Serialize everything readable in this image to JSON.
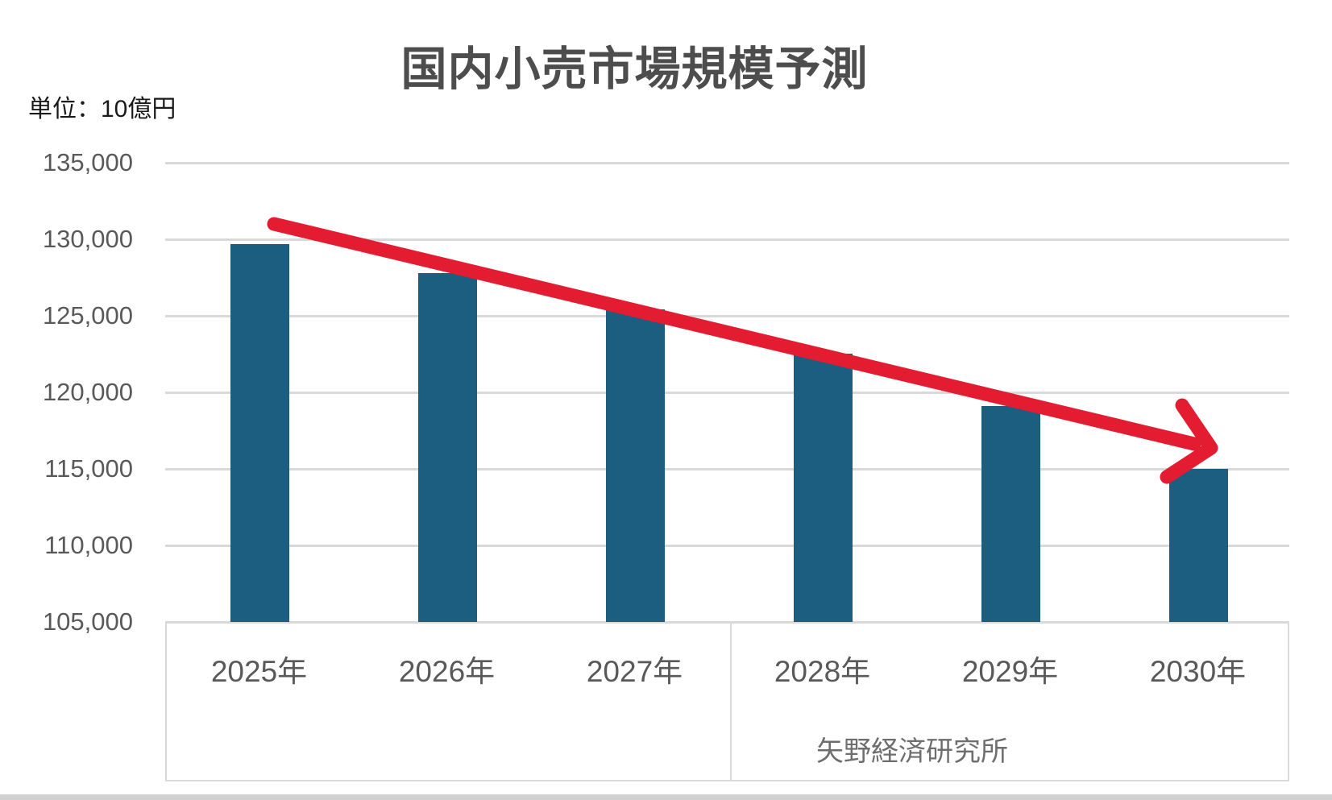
{
  "chart_data": {
    "type": "bar",
    "title": "国内小売市場規模予測",
    "unit_label": "単位：10億円",
    "source": "矢野経済研究所",
    "categories": [
      "2025年",
      "2026年",
      "2027年",
      "2028年",
      "2029年",
      "2030年"
    ],
    "values": [
      129700,
      127800,
      125400,
      122500,
      119100,
      115000
    ],
    "xlabel": "",
    "ylabel": "10億円",
    "ylim": [
      105000,
      135000
    ],
    "ytick_interval": 5000,
    "ytick_labels_top_to_bottom": [
      "135,000",
      "130,000",
      "125,000",
      "120,000",
      "115,000",
      "110,000",
      "105,000"
    ],
    "grid": "horizontal",
    "legend": "none",
    "annotation": "red downward trend arrow from 2025 to 2030",
    "colors": {
      "bar": "#1c5e80",
      "arrow": "#e31c31",
      "gridline": "#d9d9d9",
      "axis_text": "#595959",
      "title_text": "#4d4d4d",
      "source_text": "#6e6e6e",
      "bottom_strip": "#d1d1d1"
    }
  }
}
